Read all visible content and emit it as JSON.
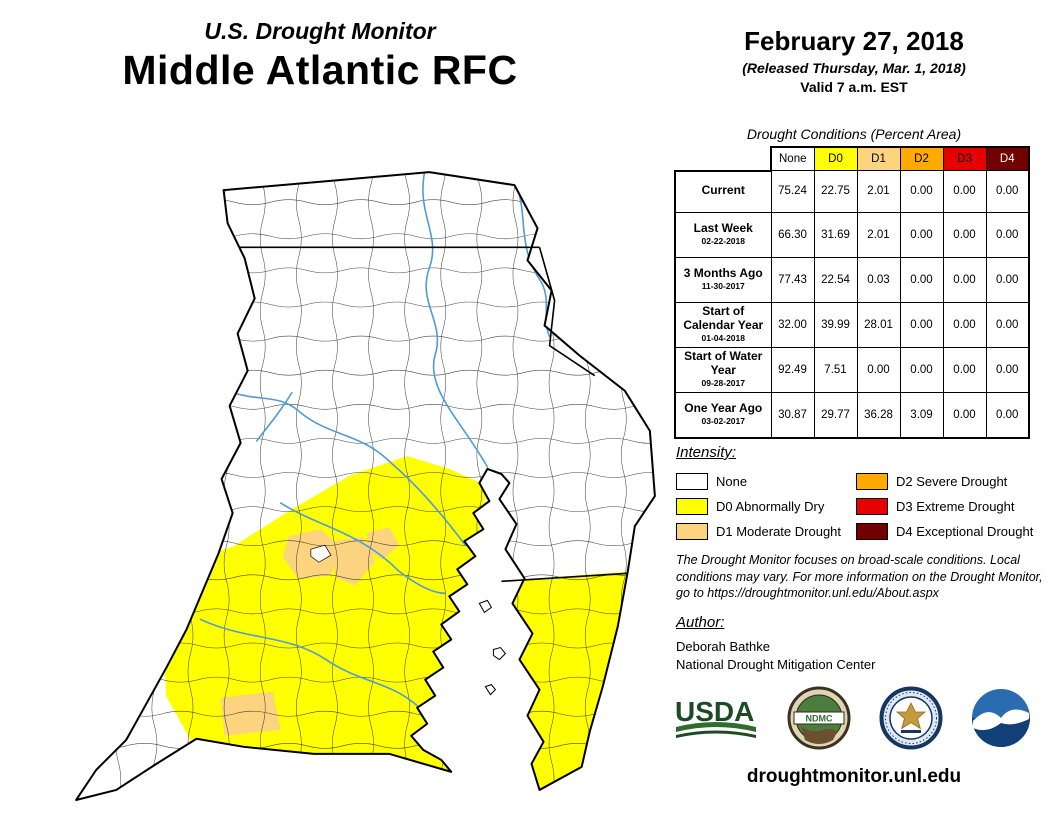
{
  "header": {
    "program": "U.S. Drought Monitor",
    "region": "Middle Atlantic RFC",
    "date": "February 27, 2018",
    "released": "(Released Thursday, Mar. 1, 2018)",
    "valid": "Valid 7 a.m. EST"
  },
  "table": {
    "title": "Drought Conditions (Percent Area)",
    "columns": [
      {
        "label": "None",
        "color": "#FFFFFF",
        "text": "#000000"
      },
      {
        "label": "D0",
        "color": "#FFFF00",
        "text": "#000000"
      },
      {
        "label": "D1",
        "color": "#FCD37F",
        "text": "#000000"
      },
      {
        "label": "D2",
        "color": "#FFAA00",
        "text": "#000000"
      },
      {
        "label": "D3",
        "color": "#E60000",
        "text": "#000000"
      },
      {
        "label": "D4",
        "color": "#730000",
        "text": "#FFFFFF"
      }
    ],
    "rows": [
      {
        "label": "Current",
        "sublabel": "",
        "values": [
          "75.24",
          "22.75",
          "2.01",
          "0.00",
          "0.00",
          "0.00"
        ]
      },
      {
        "label": "Last Week",
        "sublabel": "02-22-2018",
        "values": [
          "66.30",
          "31.69",
          "2.01",
          "0.00",
          "0.00",
          "0.00"
        ]
      },
      {
        "label": "3 Months Ago",
        "sublabel": "11-30-2017",
        "values": [
          "77.43",
          "22.54",
          "0.03",
          "0.00",
          "0.00",
          "0.00"
        ]
      },
      {
        "label": "Start of Calendar Year",
        "sublabel": "01-04-2018",
        "values": [
          "32.00",
          "39.99",
          "28.01",
          "0.00",
          "0.00",
          "0.00"
        ]
      },
      {
        "label": "Start of Water Year",
        "sublabel": "09-28-2017",
        "values": [
          "92.49",
          "7.51",
          "0.00",
          "0.00",
          "0.00",
          "0.00"
        ]
      },
      {
        "label": "One Year Ago",
        "sublabel": "03-02-2017",
        "values": [
          "30.87",
          "29.77",
          "36.28",
          "3.09",
          "0.00",
          "0.00"
        ]
      }
    ]
  },
  "legend": {
    "title": "Intensity:",
    "items": [
      {
        "label": "None",
        "color": "#FFFFFF"
      },
      {
        "label": "D0 Abnormally Dry",
        "color": "#FFFF00"
      },
      {
        "label": "D1 Moderate Drought",
        "color": "#FCD37F"
      },
      {
        "label": "D2 Severe Drought",
        "color": "#FFAA00"
      },
      {
        "label": "D3 Extreme Drought",
        "color": "#E60000"
      },
      {
        "label": "D4 Exceptional Drought",
        "color": "#730000"
      }
    ]
  },
  "disclaimer": "The Drought Monitor focuses on broad-scale conditions. Local conditions may vary. For more information on the Drought Monitor, go to https://droughtmonitor.unl.edu/About.aspx",
  "author": {
    "title": "Author:",
    "name": "Deborah Bathke",
    "org": "National Drought Mitigation Center"
  },
  "logos": {
    "usda": "USDA",
    "ndmc": "NDMC"
  },
  "footer": {
    "url": "droughtmonitor.unl.edu"
  }
}
